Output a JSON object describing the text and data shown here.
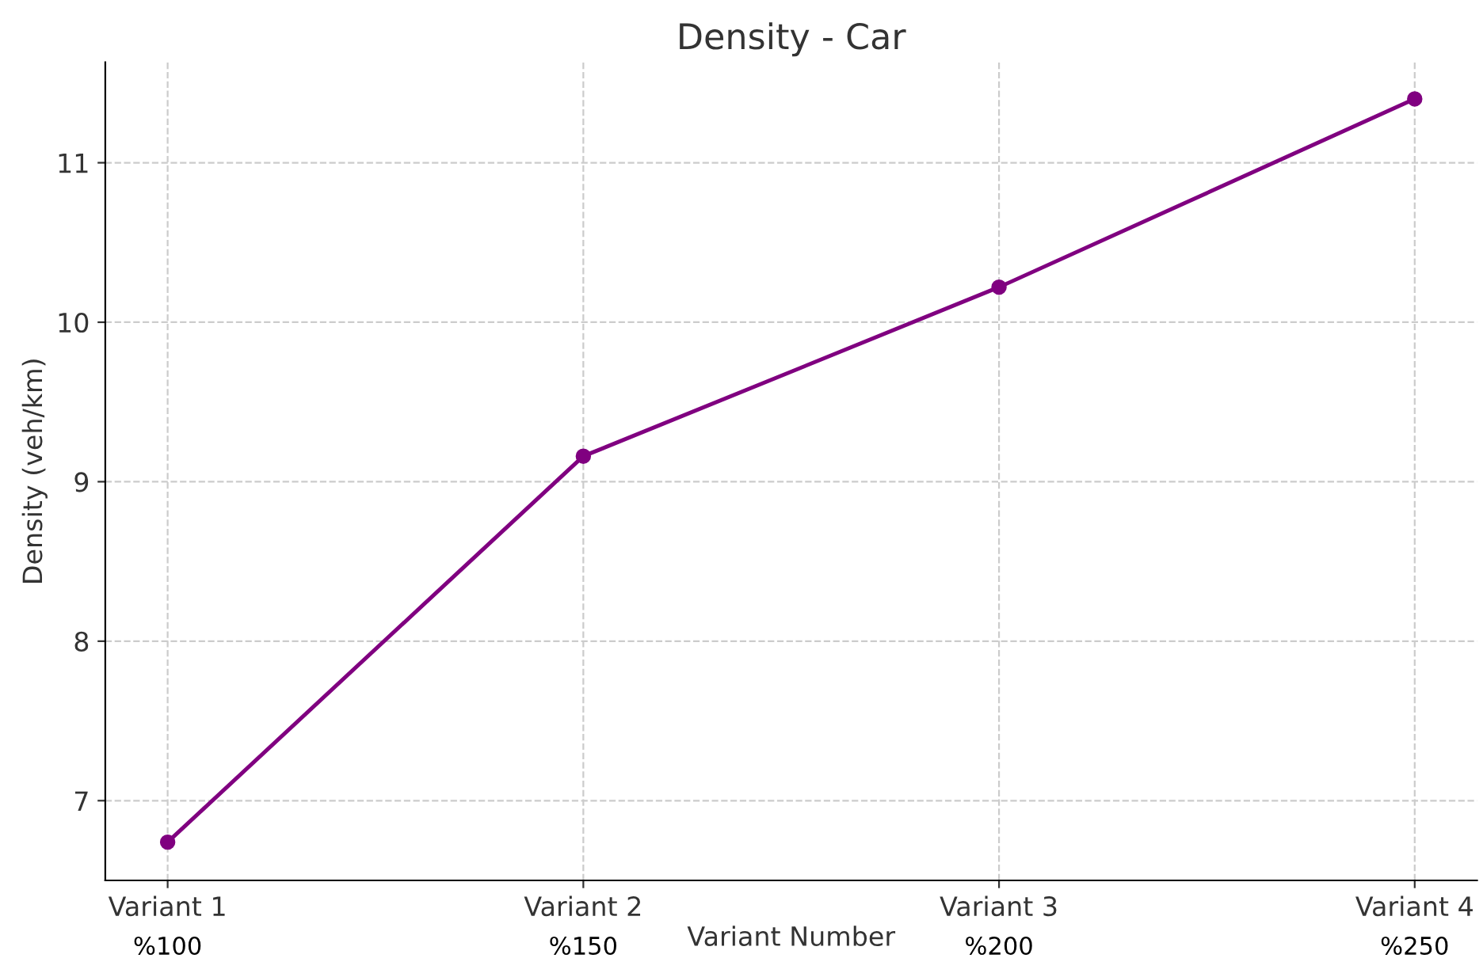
{
  "chart_data": {
    "type": "line",
    "title": "Density - Car",
    "xlabel": "Variant Number",
    "ylabel": "Density (veh/km)",
    "categories": [
      "Variant 1",
      "Variant 2",
      "Variant 3",
      "Variant 4"
    ],
    "series": [
      {
        "color": "#800080",
        "values": [
          6.74,
          9.16,
          10.22,
          11.4
        ]
      }
    ],
    "ylim": [
      6.5,
      11.63
    ],
    "yticks": [
      7,
      8,
      9,
      10,
      11
    ],
    "grid": true,
    "marker": "circle",
    "line_style": "solid",
    "annotations": [
      "%100",
      "%150",
      "%200",
      "%250"
    ]
  }
}
